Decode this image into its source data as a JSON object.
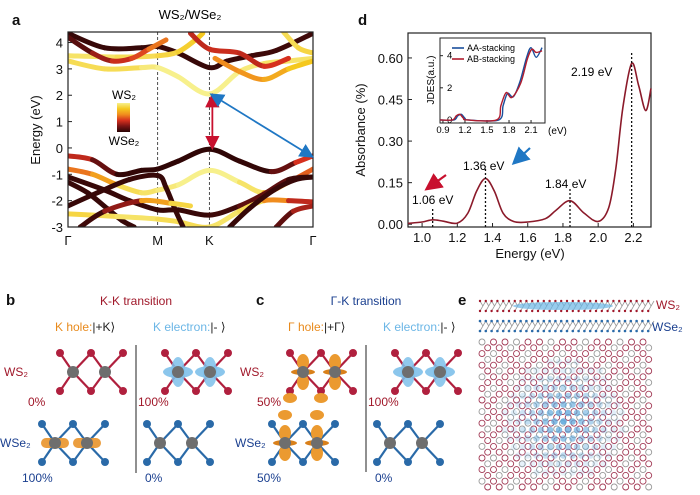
{
  "panels": {
    "a": {
      "label": "a",
      "title": "WS₂/WSe₂",
      "ylabel": "Energy (eV)",
      "colorbar_top": "WS₂",
      "colorbar_bottom": "WSe₂"
    },
    "b": {
      "label": "b",
      "title": "K-K transition",
      "hole_label": "K hole:",
      "hole_state": "|+K⟩",
      "electron_label": "K electron:",
      "electron_state": "|- ⟩",
      "layer_top": "WS₂",
      "layer_bottom": "WSe₂",
      "hole_top_pct": "0%",
      "hole_bottom_pct": "100%",
      "electron_top_pct": "100%",
      "electron_bottom_pct": "0%"
    },
    "c": {
      "label": "c",
      "title": "Γ-K transition",
      "hole_label": "Γ hole:",
      "hole_state": "|+Γ⟩",
      "electron_label": "K electron:",
      "electron_state": "|- ⟩",
      "layer_top": "WS₂",
      "layer_bottom": "WSe₂",
      "hole_top_pct": "50%",
      "hole_bottom_pct": "50%",
      "electron_top_pct": "100%",
      "electron_bottom_pct": "0%"
    },
    "d": {
      "label": "d",
      "xlabel": "Energy (eV)",
      "ylabel": "Absorbance (%)",
      "annotations": [
        "1.06 eV",
        "1.36 eV",
        "1.84 eV",
        "2.19 eV"
      ],
      "inset_ylabel": "JDES(a.u.)",
      "inset_xunit": "(eV)"
    },
    "e": {
      "label": "e",
      "layer_top": "WS₂",
      "layer_bottom": "WSe₂"
    }
  },
  "colors": {
    "ws2": "#a0182a",
    "wse2": "#1a3f8f",
    "hole": "#e88a1c",
    "electron": "#6bb6e6",
    "arrow_blue": "#1f77c4",
    "arrow_red": "#c8102e"
  },
  "chart_data": [
    {
      "type": "line",
      "title": "WS₂/WSe₂",
      "ylabel": "Energy (eV)",
      "ylim": [
        -3,
        4.4
      ],
      "yticks": [
        "4",
        "3",
        "2",
        "1",
        "0",
        "-1",
        "-2",
        "-3"
      ],
      "xticks": [
        {
          "label": "Γ",
          "k": 0
        },
        {
          "label": "M",
          "k": 0.366
        },
        {
          "label": "K",
          "k": 0.577
        },
        {
          "label": "Γ",
          "k": 1
        }
      ],
      "color_weight": "WS₂ (1) to WSe₂ (0)",
      "bands": [
        {
          "points": [
            [
              0,
              -0.3,
              0.5
            ],
            [
              0.1,
              -0.45,
              0.4
            ],
            [
              0.2,
              -1.0,
              0.05
            ],
            [
              0.3,
              -0.85,
              0.02
            ],
            [
              0.366,
              -0.8,
              0.02
            ],
            [
              0.45,
              -0.5,
              0.02
            ],
            [
              0.577,
              -0.05,
              0.02
            ],
            [
              0.7,
              -0.5,
              0.02
            ],
            [
              0.83,
              -0.9,
              0.05
            ],
            [
              0.93,
              -0.55,
              0.4
            ],
            [
              1,
              -0.3,
              0.6
            ]
          ]
        },
        {
          "points": [
            [
              0,
              -0.8,
              0.7
            ],
            [
              0.1,
              -1.0,
              0.6
            ],
            [
              0.2,
              -1.4,
              0.9
            ],
            [
              0.3,
              -1.7,
              0.95
            ],
            [
              0.366,
              -1.6,
              0.95
            ],
            [
              0.45,
              -1.4,
              1
            ],
            [
              0.577,
              -0.85,
              1
            ],
            [
              0.7,
              -1.3,
              1
            ],
            [
              0.8,
              -1.7,
              0.9
            ],
            [
              0.9,
              -1.3,
              0.6
            ],
            [
              1,
              -0.8,
              0.6
            ]
          ]
        },
        {
          "points": [
            [
              0,
              -1.1,
              0.05
            ],
            [
              0.15,
              -1.6,
              0.05
            ],
            [
              0.25,
              -2.0,
              0.05
            ],
            [
              0.366,
              -2.35,
              0.05
            ],
            [
              0.45,
              -2.35,
              0.05
            ],
            [
              0.577,
              -2.55,
              0.05
            ],
            [
              0.7,
              -2.2,
              0.1
            ],
            [
              0.8,
              -1.75,
              0.3
            ],
            [
              0.9,
              -1.2,
              0.1
            ],
            [
              1,
              -1.1,
              0.05
            ]
          ]
        },
        {
          "points": [
            [
              0,
              -1.3,
              0.05
            ],
            [
              0.08,
              -1.7,
              0.05
            ],
            [
              0.16,
              -2.3,
              0.05
            ],
            [
              0.22,
              -2.75,
              0.05
            ],
            [
              0.27,
              -3.0,
              0.05
            ]
          ]
        },
        {
          "points": [
            [
              0,
              -2.5,
              0.9
            ],
            [
              0.1,
              -2.55,
              0.9
            ],
            [
              0.2,
              -2.6,
              0.95
            ],
            [
              0.366,
              -2.7,
              0.95
            ],
            [
              0.45,
              -2.8,
              0.9
            ],
            [
              0.577,
              -3.0,
              0.95
            ],
            [
              0.7,
              -2.4,
              0.95
            ],
            [
              0.8,
              -2.0,
              0.9
            ],
            [
              0.9,
              -2.0,
              0.5
            ],
            [
              1,
              -2.05,
              0.4
            ]
          ]
        },
        {
          "points": [
            [
              0,
              -2.2,
              0.05
            ],
            [
              0.12,
              -1.7,
              0.05
            ],
            [
              0.25,
              -1.2,
              0.05
            ],
            [
              0.366,
              -1.05,
              0.05
            ],
            [
              0.4,
              -1.5,
              0.05
            ],
            [
              0.44,
              -2.4,
              0.05
            ],
            [
              0.47,
              -3.0,
              0.05
            ]
          ]
        },
        {
          "points": [
            [
              0.66,
              -3.0,
              0.05
            ],
            [
              0.74,
              -2.3,
              0.05
            ],
            [
              0.84,
              -1.6,
              0.05
            ],
            [
              0.93,
              -1.2,
              0.05
            ],
            [
              1,
              -1.1,
              0.05
            ]
          ]
        },
        {
          "points": [
            [
              0.05,
              -3.0,
              0.05
            ],
            [
              0.15,
              -2.4,
              0.1
            ],
            [
              0.3,
              -2.0,
              0.6
            ],
            [
              0.42,
              -2.1,
              0.9
            ],
            [
              0.5,
              -2.2,
              0.9
            ]
          ]
        },
        {
          "points": [
            [
              0.85,
              -3.0,
              0.1
            ],
            [
              0.92,
              -2.4,
              0.3
            ],
            [
              1,
              -2.2,
              0.5
            ]
          ]
        },
        {
          "points": [
            [
              0,
              3.3,
              0.95
            ],
            [
              0.15,
              3.0,
              0.9
            ],
            [
              0.3,
              3.05,
              0.95
            ],
            [
              0.366,
              3.05,
              1
            ],
            [
              0.45,
              2.7,
              1
            ],
            [
              0.577,
              2.05,
              1
            ],
            [
              0.7,
              2.9,
              1
            ],
            [
              0.8,
              3.2,
              0.95
            ],
            [
              0.9,
              3.3,
              0.95
            ],
            [
              1,
              3.4,
              0.95
            ]
          ]
        },
        {
          "points": [
            [
              0,
              4.35,
              0.05
            ],
            [
              0.15,
              3.8,
              0.05
            ],
            [
              0.3,
              3.8,
              0.05
            ],
            [
              0.366,
              3.85,
              0.05
            ],
            [
              0.45,
              3.6,
              0.05
            ],
            [
              0.577,
              3.05,
              0.05
            ],
            [
              0.65,
              3.3,
              0.05
            ],
            [
              0.75,
              3.5,
              0.05
            ],
            [
              0.85,
              3.7,
              0.1
            ],
            [
              1,
              4.35,
              0.05
            ]
          ]
        },
        {
          "points": [
            [
              0,
              3.5,
              0.95
            ],
            [
              0.2,
              3.45,
              0.95
            ],
            [
              0.366,
              3.5,
              0.9
            ],
            [
              0.45,
              3.65,
              0.9
            ],
            [
              0.52,
              4.1,
              0.85
            ],
            [
              0.55,
              4.35,
              0.85
            ]
          ]
        },
        {
          "points": [
            [
              0,
              4.2,
              0.05
            ],
            [
              0.1,
              3.6,
              0.3
            ],
            [
              0.18,
              3.3,
              0.45
            ],
            [
              0.26,
              3.4,
              0.5
            ],
            [
              0.33,
              3.75,
              0.6
            ],
            [
              0.4,
              4.1,
              0.7
            ]
          ]
        },
        {
          "points": [
            [
              0.6,
              3.4,
              0.7
            ],
            [
              0.7,
              2.9,
              0.7
            ],
            [
              0.8,
              2.6,
              0.75
            ],
            [
              0.9,
              3.0,
              0.8
            ],
            [
              1,
              3.3,
              0.9
            ]
          ]
        },
        {
          "points": [
            [
              0.5,
              4.35,
              0.45
            ],
            [
              0.577,
              3.75,
              0.45
            ],
            [
              0.7,
              3.6,
              0.5
            ],
            [
              0.8,
              3.1,
              0.4
            ],
            [
              0.9,
              3.4,
              0.6
            ]
          ]
        },
        {
          "points": [
            [
              0.88,
              4.4,
              0.95
            ],
            [
              0.94,
              3.8,
              0.9
            ],
            [
              1,
              3.6,
              0.9
            ]
          ]
        }
      ],
      "arrows": [
        {
          "from": [
            0.577,
            0.05
          ],
          "to": [
            0.577,
            1.95
          ],
          "color": "red"
        },
        {
          "from": [
            1,
            -0.3
          ],
          "to": [
            0.59,
            2.0
          ],
          "color": "blue"
        }
      ]
    },
    {
      "type": "line",
      "xlabel": "Energy (eV)",
      "ylabel": "Absorbance (%)",
      "xlim": [
        0.92,
        2.3
      ],
      "ylim": [
        -0.01,
        0.69
      ],
      "xticks": [
        1.0,
        1.2,
        1.4,
        1.6,
        1.8,
        2.0,
        2.2
      ],
      "yticks": [
        0.0,
        0.15,
        0.3,
        0.45,
        0.6
      ],
      "series": [
        {
          "color": "#8b1a2a",
          "points": [
            [
              0.92,
              0.003
            ],
            [
              1.0,
              0.008
            ],
            [
              1.06,
              0.016
            ],
            [
              1.12,
              0.011
            ],
            [
              1.2,
              0.004
            ],
            [
              1.26,
              0.04
            ],
            [
              1.31,
              0.12
            ],
            [
              1.36,
              0.165
            ],
            [
              1.41,
              0.12
            ],
            [
              1.46,
              0.04
            ],
            [
              1.52,
              0.01
            ],
            [
              1.6,
              0.008
            ],
            [
              1.7,
              0.02
            ],
            [
              1.76,
              0.05
            ],
            [
              1.84,
              0.085
            ],
            [
              1.92,
              0.04
            ],
            [
              2.0,
              0.01
            ],
            [
              2.06,
              0.06
            ],
            [
              2.1,
              0.2
            ],
            [
              2.14,
              0.42
            ],
            [
              2.19,
              0.58
            ],
            [
              2.23,
              0.5
            ],
            [
              2.27,
              0.41
            ],
            [
              2.3,
              0.49
            ]
          ]
        }
      ],
      "peaks": [
        1.06,
        1.36,
        1.84,
        2.19
      ],
      "inset": {
        "type": "line",
        "ylabel": "JDES(a.u.)",
        "xlim": [
          0.86,
          2.29
        ],
        "ylim": [
          -0.19,
          5.1
        ],
        "xticks": [
          0.9,
          1.2,
          1.5,
          1.8,
          2.1
        ],
        "yticks": [
          0,
          2,
          4
        ],
        "legend": "top-left",
        "series": [
          {
            "name": "AA-stacking",
            "color": "#1a4f9c",
            "points": [
              [
                0.86,
                0
              ],
              [
                1.05,
                0
              ],
              [
                1.1,
                0.25
              ],
              [
                1.15,
                0.35
              ],
              [
                1.2,
                0.1
              ],
              [
                1.25,
                0
              ],
              [
                1.66,
                0
              ],
              [
                1.72,
                0.9
              ],
              [
                1.78,
                1.65
              ],
              [
                1.86,
                1.45
              ],
              [
                1.95,
                2.4
              ],
              [
                2.04,
                3.9
              ],
              [
                2.1,
                4.5
              ],
              [
                2.17,
                3.9
              ],
              [
                2.25,
                4.5
              ]
            ]
          },
          {
            "name": "AB-stacking",
            "color": "#b01c2e",
            "points": [
              [
                0.86,
                0
              ],
              [
                1.03,
                0
              ],
              [
                1.08,
                0.25
              ],
              [
                1.13,
                0.35
              ],
              [
                1.18,
                0.1
              ],
              [
                1.23,
                0
              ],
              [
                1.63,
                0
              ],
              [
                1.69,
                0.9
              ],
              [
                1.76,
                1.7
              ],
              [
                1.84,
                1.4
              ],
              [
                1.96,
                2.3
              ],
              [
                2.05,
                3.8
              ],
              [
                2.11,
                4.4
              ],
              [
                2.17,
                4.2
              ],
              [
                2.25,
                4.3
              ]
            ]
          }
        ]
      }
    }
  ]
}
